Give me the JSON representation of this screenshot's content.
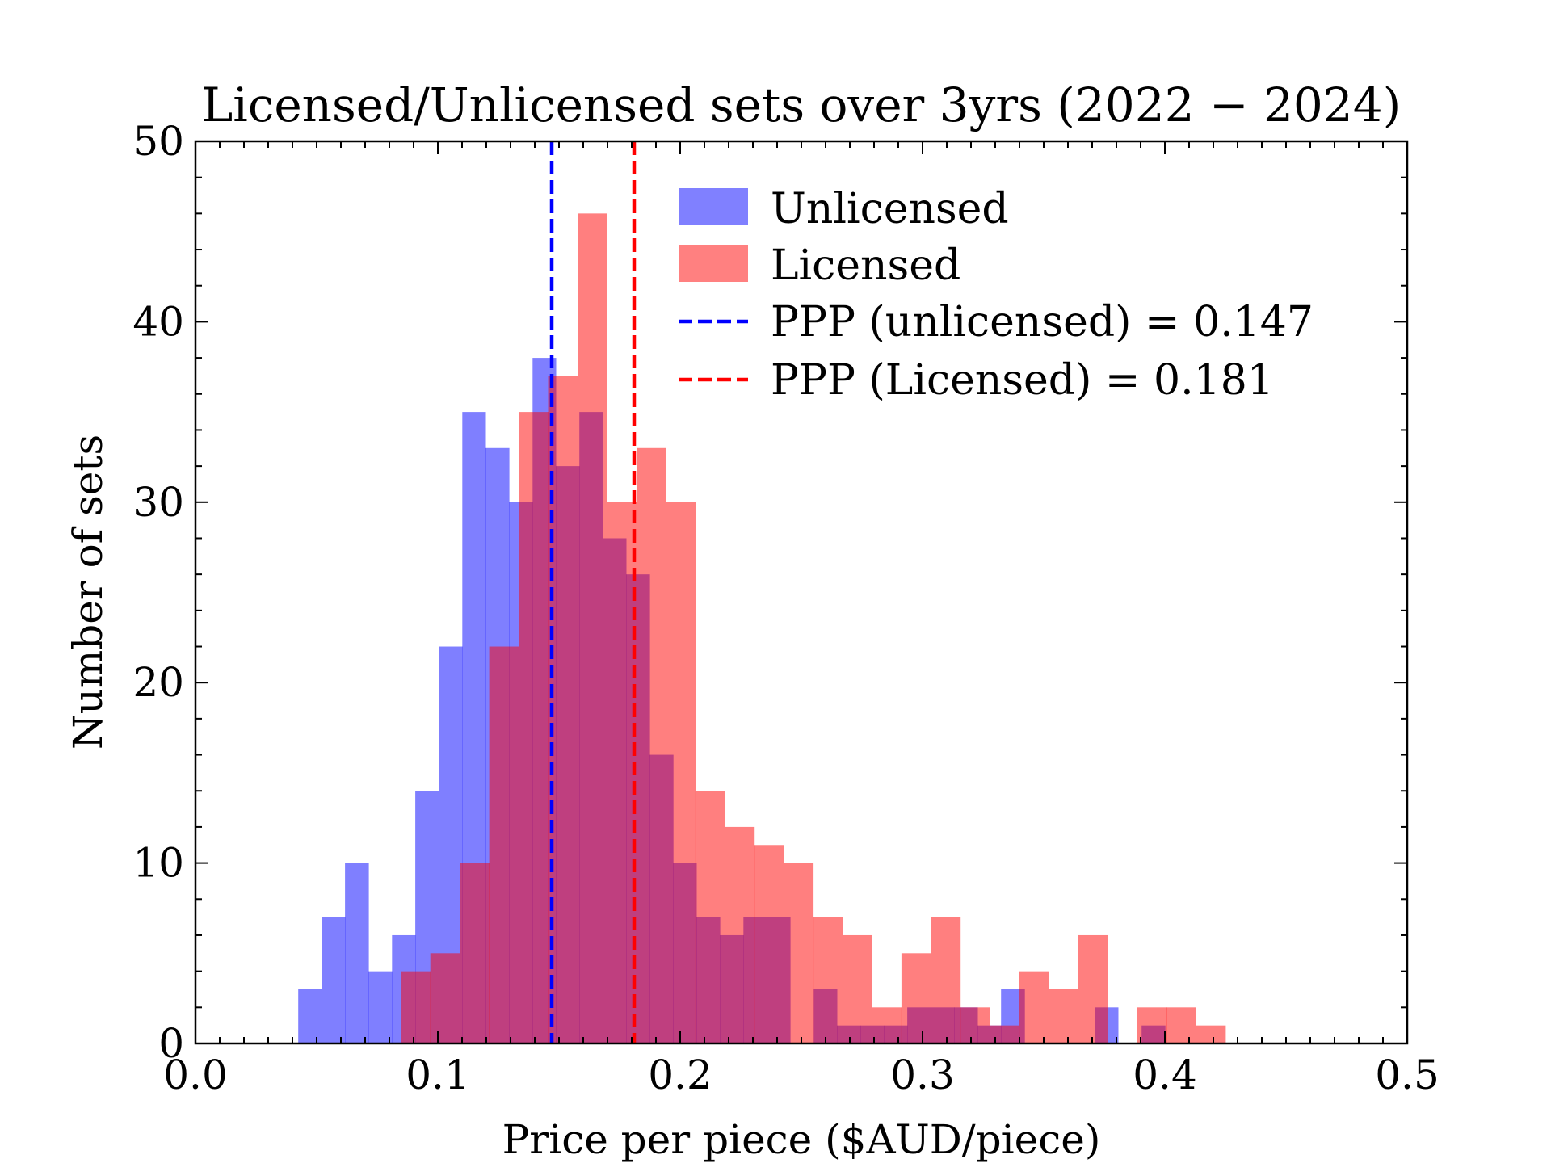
{
  "chart_data": {
    "type": "bar",
    "title": "Licensed/Unlicensed sets over 3yrs (2022 − 2024)",
    "xlabel": "Price per piece ($AUD/piece)",
    "ylabel": "Number of sets",
    "xlim": [
      0.0,
      0.5
    ],
    "ylim": [
      0,
      50
    ],
    "xticks": [
      "0.0",
      "0.1",
      "0.2",
      "0.3",
      "0.4",
      "0.5"
    ],
    "yticks": [
      "0",
      "10",
      "20",
      "30",
      "40",
      "50"
    ],
    "grid": false,
    "legend_position": "top-right",
    "series": [
      {
        "name": "Unlicensed",
        "color": "#8080ff",
        "bins": [
          {
            "x0": 0.0424,
            "x1": 0.0521,
            "count": 3
          },
          {
            "x0": 0.0521,
            "x1": 0.0617,
            "count": 7
          },
          {
            "x0": 0.0617,
            "x1": 0.0714,
            "count": 10
          },
          {
            "x0": 0.0714,
            "x1": 0.0811,
            "count": 4
          },
          {
            "x0": 0.0811,
            "x1": 0.0907,
            "count": 6
          },
          {
            "x0": 0.0907,
            "x1": 0.1004,
            "count": 14
          },
          {
            "x0": 0.1004,
            "x1": 0.1101,
            "count": 22
          },
          {
            "x0": 0.1101,
            "x1": 0.1197,
            "count": 35
          },
          {
            "x0": 0.1197,
            "x1": 0.1294,
            "count": 33
          },
          {
            "x0": 0.1294,
            "x1": 0.1391,
            "count": 30
          },
          {
            "x0": 0.1391,
            "x1": 0.1487,
            "count": 38
          },
          {
            "x0": 0.1487,
            "x1": 0.1584,
            "count": 32
          },
          {
            "x0": 0.1584,
            "x1": 0.1681,
            "count": 35
          },
          {
            "x0": 0.1681,
            "x1": 0.1777,
            "count": 28
          },
          {
            "x0": 0.1777,
            "x1": 0.1874,
            "count": 26
          },
          {
            "x0": 0.1874,
            "x1": 0.1971,
            "count": 16
          },
          {
            "x0": 0.1971,
            "x1": 0.2067,
            "count": 10
          },
          {
            "x0": 0.2067,
            "x1": 0.2164,
            "count": 7
          },
          {
            "x0": 0.2164,
            "x1": 0.2261,
            "count": 6
          },
          {
            "x0": 0.2261,
            "x1": 0.2357,
            "count": 7
          },
          {
            "x0": 0.2357,
            "x1": 0.2454,
            "count": 7
          },
          {
            "x0": 0.2454,
            "x1": 0.2551,
            "count": 0
          },
          {
            "x0": 0.2551,
            "x1": 0.2647,
            "count": 3
          },
          {
            "x0": 0.2647,
            "x1": 0.2744,
            "count": 1
          },
          {
            "x0": 0.2744,
            "x1": 0.2841,
            "count": 1
          },
          {
            "x0": 0.2841,
            "x1": 0.2937,
            "count": 1
          },
          {
            "x0": 0.2937,
            "x1": 0.3034,
            "count": 2
          },
          {
            "x0": 0.3034,
            "x1": 0.3131,
            "count": 2
          },
          {
            "x0": 0.3131,
            "x1": 0.3227,
            "count": 2
          },
          {
            "x0": 0.3227,
            "x1": 0.3324,
            "count": 1
          },
          {
            "x0": 0.3324,
            "x1": 0.3421,
            "count": 3
          },
          {
            "x0": 0.3421,
            "x1": 0.3517,
            "count": 0
          },
          {
            "x0": 0.3517,
            "x1": 0.3614,
            "count": 0
          },
          {
            "x0": 0.3614,
            "x1": 0.3711,
            "count": 0
          },
          {
            "x0": 0.3711,
            "x1": 0.3807,
            "count": 2
          },
          {
            "x0": 0.3807,
            "x1": 0.3904,
            "count": 0
          },
          {
            "x0": 0.3904,
            "x1": 0.4001,
            "count": 1
          }
        ]
      },
      {
        "name": "Licensed",
        "color": "#ff8080",
        "bins": [
          {
            "x0": 0.0848,
            "x1": 0.0969,
            "count": 4
          },
          {
            "x0": 0.0969,
            "x1": 0.1091,
            "count": 5
          },
          {
            "x0": 0.1091,
            "x1": 0.1212,
            "count": 10
          },
          {
            "x0": 0.1212,
            "x1": 0.1334,
            "count": 22
          },
          {
            "x0": 0.1334,
            "x1": 0.1455,
            "count": 35
          },
          {
            "x0": 0.1455,
            "x1": 0.1577,
            "count": 37
          },
          {
            "x0": 0.1577,
            "x1": 0.1698,
            "count": 46
          },
          {
            "x0": 0.1698,
            "x1": 0.182,
            "count": 30
          },
          {
            "x0": 0.182,
            "x1": 0.1941,
            "count": 33
          },
          {
            "x0": 0.1941,
            "x1": 0.2063,
            "count": 30
          },
          {
            "x0": 0.2063,
            "x1": 0.2184,
            "count": 14
          },
          {
            "x0": 0.2184,
            "x1": 0.2306,
            "count": 12
          },
          {
            "x0": 0.2306,
            "x1": 0.2427,
            "count": 11
          },
          {
            "x0": 0.2427,
            "x1": 0.2549,
            "count": 10
          },
          {
            "x0": 0.2549,
            "x1": 0.267,
            "count": 7
          },
          {
            "x0": 0.267,
            "x1": 0.2792,
            "count": 6
          },
          {
            "x0": 0.2792,
            "x1": 0.2913,
            "count": 2
          },
          {
            "x0": 0.2913,
            "x1": 0.3035,
            "count": 5
          },
          {
            "x0": 0.3035,
            "x1": 0.3156,
            "count": 7
          },
          {
            "x0": 0.3156,
            "x1": 0.3278,
            "count": 2
          },
          {
            "x0": 0.3278,
            "x1": 0.3399,
            "count": 1
          },
          {
            "x0": 0.3399,
            "x1": 0.3521,
            "count": 4
          },
          {
            "x0": 0.3521,
            "x1": 0.3642,
            "count": 3
          },
          {
            "x0": 0.3642,
            "x1": 0.3764,
            "count": 6
          },
          {
            "x0": 0.3764,
            "x1": 0.3885,
            "count": 0
          },
          {
            "x0": 0.3885,
            "x1": 0.4007,
            "count": 2
          },
          {
            "x0": 0.4007,
            "x1": 0.4128,
            "count": 2
          },
          {
            "x0": 0.4128,
            "x1": 0.425,
            "count": 1
          }
        ]
      }
    ],
    "reference_lines": [
      {
        "label": "PPP (unlicensed) = 0.147",
        "x": 0.147,
        "color": "#0000ff",
        "style": "dashed"
      },
      {
        "label": "PPP (Licensed) = 0.181",
        "x": 0.181,
        "color": "#ff0000",
        "style": "dashed"
      }
    ]
  }
}
